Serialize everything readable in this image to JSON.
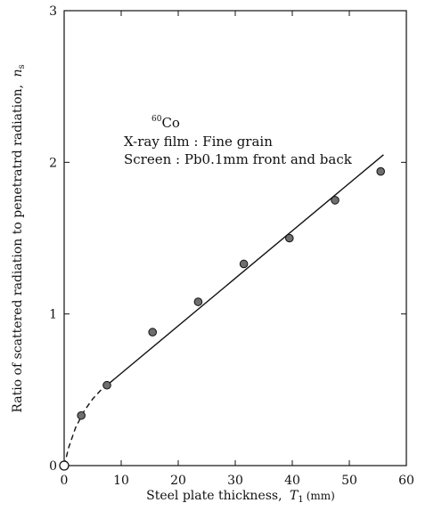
{
  "chart_data": {
    "type": "scatter",
    "title": "",
    "xlabel": "Steel plate thickness,",
    "xlabel_symbol": "T",
    "xlabel_subscript": "1",
    "xlabel_unit": "(mm)",
    "ylabel": "Ratio of scattered radiation to penetratrd radiation,",
    "ylabel_symbol": "n",
    "ylabel_subscript": "s",
    "xlim": [
      0,
      60
    ],
    "ylim": [
      0,
      3
    ],
    "x_ticks": [
      0,
      10,
      20,
      30,
      40,
      50,
      60
    ],
    "x_tick_labels": [
      "0",
      "10",
      "20",
      "30",
      "40",
      "50",
      "60"
    ],
    "y_ticks": [
      0,
      1,
      2,
      3
    ],
    "y_tick_labels": [
      "0",
      "1",
      "2",
      "3"
    ],
    "grid": false,
    "annotations": {
      "source_superscript": "60",
      "source": "Co",
      "film": "X-ray film : Fine grain",
      "screen": "Screen : Pb0.1mm front and back"
    },
    "points": {
      "x": [
        3,
        7.5,
        15.5,
        23.5,
        31.5,
        39.5,
        47.5,
        55.5
      ],
      "y": [
        0.33,
        0.53,
        0.88,
        1.08,
        1.33,
        1.5,
        1.75,
        1.94
      ]
    },
    "origin_marker": {
      "x": 0,
      "y": 0,
      "style": "open-circle"
    },
    "fit_line": {
      "x": [
        7.5,
        56
      ],
      "y": [
        0.53,
        2.05
      ],
      "style": "solid"
    },
    "dashed_curve": {
      "x": [
        0,
        0.8,
        2,
        3.5,
        5,
        6.5,
        7.5
      ],
      "y": [
        0,
        0.12,
        0.25,
        0.36,
        0.44,
        0.5,
        0.53
      ],
      "style": "dashed"
    },
    "colors": {
      "ink": "#111111",
      "marker_fill": "#6e6e6e"
    }
  }
}
